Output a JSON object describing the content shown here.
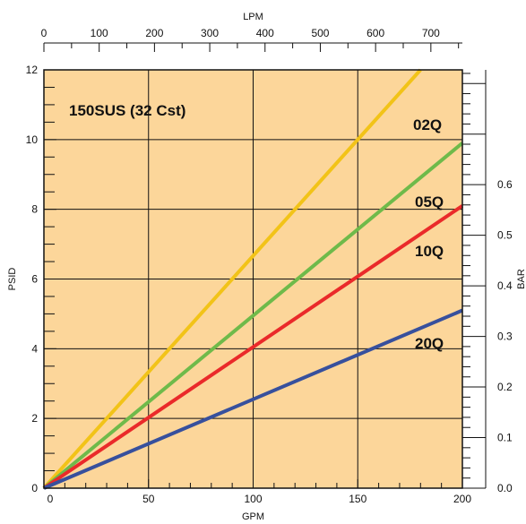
{
  "chart_data": {
    "type": "line",
    "annotation": "150SUS (32 Cst)",
    "xlabel": "GPM",
    "ylabel": "PSID",
    "x2label": "LPM",
    "y2label": "BAR",
    "xlim": [
      0,
      200
    ],
    "ylim": [
      0,
      12
    ],
    "x2lim": [
      0,
      757
    ],
    "y2lim": [
      0,
      0.827
    ],
    "x_ticks": [
      "0",
      "50",
      "100",
      "150",
      "200"
    ],
    "y_ticks": [
      "0",
      "2",
      "4",
      "6",
      "8",
      "10",
      "12"
    ],
    "x2_ticks": [
      "0",
      "100",
      "200",
      "300",
      "400",
      "500",
      "600",
      "700"
    ],
    "y2_ticks": [
      "0.0",
      "0.1",
      "0.2",
      "0.3",
      "0.4",
      "0.5",
      "0.6"
    ],
    "grid": true,
    "series": [
      {
        "name": "02Q",
        "color": "#f2c318",
        "x": [
          0,
          180
        ],
        "y": [
          0,
          12.0
        ]
      },
      {
        "name": "05Q",
        "color": "#6fba4a",
        "x": [
          0,
          200
        ],
        "y": [
          0,
          9.9
        ]
      },
      {
        "name": "10Q",
        "color": "#ea2a2a",
        "x": [
          0,
          200
        ],
        "y": [
          0,
          8.1
        ]
      },
      {
        "name": "20Q",
        "color": "#37509d",
        "x": [
          0,
          200
        ],
        "y": [
          0,
          5.1
        ]
      }
    ],
    "colors": {
      "plot_background": "#fcd69a",
      "grid": "#111111"
    }
  }
}
